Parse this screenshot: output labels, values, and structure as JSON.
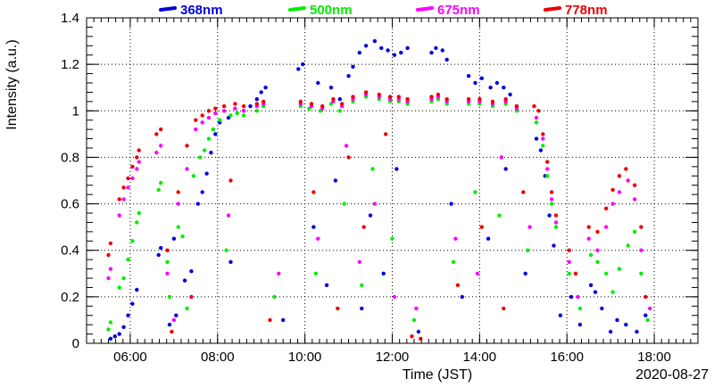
{
  "chart_data": {
    "type": "scatter",
    "title": "",
    "xlabel": "Time (JST)",
    "ylabel": "Intensity (a.u.)",
    "date_label": "2020-08-27",
    "xlim": [
      5.0,
      19.0
    ],
    "ylim": [
      0,
      1.4
    ],
    "x_ticks": [
      {
        "value": 6,
        "label": "06:00"
      },
      {
        "value": 8,
        "label": "08:00"
      },
      {
        "value": 10,
        "label": "10:00"
      },
      {
        "value": 12,
        "label": "12:00"
      },
      {
        "value": 14,
        "label": "14:00"
      },
      {
        "value": 16,
        "label": "16:00"
      },
      {
        "value": 18,
        "label": "18:00"
      }
    ],
    "y_ticks": [
      {
        "value": 0,
        "label": "0"
      },
      {
        "value": 0.2,
        "label": "0.2"
      },
      {
        "value": 0.4,
        "label": "0.4"
      },
      {
        "value": 0.6,
        "label": "0.6"
      },
      {
        "value": 0.8,
        "label": "0.8"
      },
      {
        "value": 1.0,
        "label": "1"
      },
      {
        "value": 1.2,
        "label": "1.2"
      },
      {
        "value": 1.4,
        "label": "1.4"
      }
    ],
    "grid": true,
    "legend_position": "top",
    "series": [
      {
        "name": "368nm",
        "color": "#0000dd",
        "points": [
          [
            5.55,
            0.02
          ],
          [
            5.65,
            0.03
          ],
          [
            5.75,
            0.04
          ],
          [
            5.85,
            0.07
          ],
          [
            5.95,
            0.12
          ],
          [
            6.05,
            0.17
          ],
          [
            6.15,
            0.23
          ],
          [
            6.65,
            0.38
          ],
          [
            6.7,
            0.41
          ],
          [
            6.9,
            0.08
          ],
          [
            7.05,
            0.12
          ],
          [
            7.25,
            0.27
          ],
          [
            7.4,
            0.31
          ],
          [
            7.55,
            0.6
          ],
          [
            7.65,
            0.65
          ],
          [
            7.75,
            0.73
          ],
          [
            7.85,
            0.82
          ],
          [
            7.95,
            0.9
          ],
          [
            8.05,
            0.95
          ],
          [
            8.25,
            0.97
          ],
          [
            8.45,
            0.99
          ],
          [
            8.6,
            1.0
          ],
          [
            8.75,
            1.02
          ],
          [
            8.9,
            1.05
          ],
          [
            9.0,
            1.08
          ],
          [
            9.1,
            1.1
          ],
          [
            9.85,
            1.18
          ],
          [
            9.95,
            1.2
          ],
          [
            10.3,
            1.12
          ],
          [
            10.6,
            1.1
          ],
          [
            10.8,
            1.05
          ],
          [
            11.0,
            1.15
          ],
          [
            11.1,
            1.19
          ],
          [
            11.25,
            1.25
          ],
          [
            11.4,
            1.28
          ],
          [
            11.6,
            1.3
          ],
          [
            11.75,
            1.27
          ],
          [
            11.9,
            1.26
          ],
          [
            12.05,
            1.24
          ],
          [
            12.2,
            1.25
          ],
          [
            12.35,
            1.27
          ],
          [
            12.9,
            1.25
          ],
          [
            13.0,
            1.27
          ],
          [
            13.15,
            1.26
          ],
          [
            13.25,
            1.22
          ],
          [
            13.75,
            1.15
          ],
          [
            13.9,
            1.12
          ],
          [
            14.05,
            1.14
          ],
          [
            14.25,
            1.1
          ],
          [
            14.4,
            1.12
          ],
          [
            14.55,
            1.1
          ],
          [
            14.7,
            1.07
          ],
          [
            14.85,
            1.02
          ],
          [
            15.3,
            0.88
          ],
          [
            15.4,
            0.83
          ],
          [
            15.5,
            0.72
          ],
          [
            15.6,
            0.55
          ],
          [
            15.7,
            0.42
          ],
          [
            16.1,
            0.2
          ],
          [
            16.3,
            0.08
          ],
          [
            16.55,
            0.25
          ],
          [
            16.65,
            0.22
          ],
          [
            16.8,
            0.15
          ],
          [
            17.0,
            0.05
          ],
          [
            17.15,
            0.1
          ],
          [
            17.35,
            0.08
          ],
          [
            17.6,
            0.05
          ],
          [
            7.0,
            0.45
          ],
          [
            8.3,
            0.35
          ],
          [
            9.5,
            0.1
          ],
          [
            10.2,
            0.5
          ],
          [
            10.5,
            0.25
          ],
          [
            10.7,
            0.7
          ],
          [
            11.3,
            0.15
          ],
          [
            11.5,
            0.55
          ],
          [
            11.8,
            0.3
          ],
          [
            12.1,
            0.75
          ],
          [
            12.6,
            0.05
          ],
          [
            13.35,
            0.6
          ],
          [
            13.6,
            0.2
          ],
          [
            14.2,
            0.45
          ],
          [
            14.6,
            0.75
          ],
          [
            15.05,
            0.3
          ],
          [
            15.85,
            0.12
          ],
          [
            17.8,
            0.12
          ]
        ]
      },
      {
        "name": "500nm",
        "color": "#00ee00",
        "points": [
          [
            5.5,
            0.06
          ],
          [
            5.55,
            0.09
          ],
          [
            5.75,
            0.24
          ],
          [
            5.85,
            0.28
          ],
          [
            5.95,
            0.36
          ],
          [
            6.05,
            0.44
          ],
          [
            6.15,
            0.52
          ],
          [
            6.2,
            0.56
          ],
          [
            6.65,
            0.66
          ],
          [
            6.7,
            0.69
          ],
          [
            6.85,
            0.35
          ],
          [
            7.1,
            0.5
          ],
          [
            7.2,
            0.46
          ],
          [
            7.45,
            0.72
          ],
          [
            7.6,
            0.8
          ],
          [
            7.7,
            0.83
          ],
          [
            7.8,
            0.88
          ],
          [
            7.9,
            0.92
          ],
          [
            8.05,
            0.96
          ],
          [
            8.3,
            0.98
          ],
          [
            8.45,
            0.99
          ],
          [
            8.6,
            0.98
          ],
          [
            8.9,
            1.0
          ],
          [
            9.05,
            1.02
          ],
          [
            9.9,
            1.02
          ],
          [
            10.1,
            1.01
          ],
          [
            10.35,
            1.0
          ],
          [
            10.6,
            1.03
          ],
          [
            10.8,
            1.0
          ],
          [
            11.1,
            1.04
          ],
          [
            11.4,
            1.06
          ],
          [
            11.7,
            1.05
          ],
          [
            11.95,
            1.04
          ],
          [
            12.15,
            1.04
          ],
          [
            12.35,
            1.03
          ],
          [
            12.9,
            1.04
          ],
          [
            13.05,
            1.05
          ],
          [
            13.25,
            1.03
          ],
          [
            13.75,
            1.03
          ],
          [
            14.0,
            1.03
          ],
          [
            14.3,
            1.02
          ],
          [
            14.6,
            1.03
          ],
          [
            14.85,
            1.0
          ],
          [
            15.3,
            0.95
          ],
          [
            15.45,
            0.85
          ],
          [
            15.55,
            0.72
          ],
          [
            15.65,
            0.6
          ],
          [
            15.75,
            0.5
          ],
          [
            16.05,
            0.3
          ],
          [
            16.55,
            0.38
          ],
          [
            16.7,
            0.35
          ],
          [
            16.9,
            0.3
          ],
          [
            17.05,
            0.22
          ],
          [
            17.2,
            0.32
          ],
          [
            17.4,
            0.42
          ],
          [
            17.55,
            0.48
          ],
          [
            17.7,
            0.3
          ],
          [
            6.9,
            0.2
          ],
          [
            7.3,
            0.15
          ],
          [
            8.2,
            0.4
          ],
          [
            9.3,
            0.2
          ],
          [
            10.25,
            0.3
          ],
          [
            10.9,
            0.6
          ],
          [
            11.3,
            0.25
          ],
          [
            11.55,
            0.75
          ],
          [
            12.0,
            0.45
          ],
          [
            12.5,
            0.1
          ],
          [
            13.4,
            0.35
          ],
          [
            13.9,
            0.65
          ],
          [
            14.45,
            0.55
          ],
          [
            15.1,
            0.4
          ],
          [
            16.3,
            0.15
          ],
          [
            17.85,
            0.1
          ]
        ]
      },
      {
        "name": "675nm",
        "color": "#ff00ff",
        "points": [
          [
            5.5,
            0.28
          ],
          [
            5.55,
            0.32
          ],
          [
            5.75,
            0.55
          ],
          [
            5.85,
            0.62
          ],
          [
            5.95,
            0.67
          ],
          [
            6.05,
            0.71
          ],
          [
            6.15,
            0.75
          ],
          [
            6.2,
            0.78
          ],
          [
            6.6,
            0.82
          ],
          [
            6.7,
            0.85
          ],
          [
            6.85,
            0.3
          ],
          [
            7.1,
            0.6
          ],
          [
            7.3,
            0.75
          ],
          [
            7.5,
            0.92
          ],
          [
            7.65,
            0.95
          ],
          [
            7.8,
            0.97
          ],
          [
            7.95,
            0.99
          ],
          [
            8.15,
            1.0
          ],
          [
            8.4,
            1.01
          ],
          [
            8.6,
            1.0
          ],
          [
            8.9,
            1.02
          ],
          [
            9.05,
            1.03
          ],
          [
            9.9,
            1.03
          ],
          [
            10.15,
            1.02
          ],
          [
            10.4,
            1.01
          ],
          [
            10.65,
            1.04
          ],
          [
            10.85,
            1.02
          ],
          [
            11.1,
            1.05
          ],
          [
            11.4,
            1.07
          ],
          [
            11.7,
            1.06
          ],
          [
            11.95,
            1.05
          ],
          [
            12.15,
            1.05
          ],
          [
            12.35,
            1.04
          ],
          [
            12.9,
            1.05
          ],
          [
            13.05,
            1.06
          ],
          [
            13.25,
            1.04
          ],
          [
            13.75,
            1.04
          ],
          [
            14.0,
            1.04
          ],
          [
            14.3,
            1.03
          ],
          [
            14.6,
            1.04
          ],
          [
            14.85,
            1.01
          ],
          [
            15.3,
            0.97
          ],
          [
            15.45,
            0.88
          ],
          [
            15.55,
            0.75
          ],
          [
            15.65,
            0.62
          ],
          [
            15.75,
            0.52
          ],
          [
            16.05,
            0.35
          ],
          [
            16.5,
            0.45
          ],
          [
            16.7,
            0.4
          ],
          [
            16.9,
            0.5
          ],
          [
            17.05,
            0.6
          ],
          [
            17.2,
            0.65
          ],
          [
            17.4,
            0.7
          ],
          [
            17.55,
            0.62
          ],
          [
            17.7,
            0.4
          ],
          [
            7.0,
            0.1
          ],
          [
            8.25,
            0.55
          ],
          [
            9.4,
            0.3
          ],
          [
            10.3,
            0.45
          ],
          [
            10.95,
            0.85
          ],
          [
            11.25,
            0.35
          ],
          [
            11.6,
            0.6
          ],
          [
            12.05,
            0.2
          ],
          [
            12.55,
            0.15
          ],
          [
            13.45,
            0.45
          ],
          [
            13.95,
            0.3
          ],
          [
            14.5,
            0.8
          ],
          [
            15.15,
            0.5
          ],
          [
            16.25,
            0.2
          ],
          [
            17.9,
            0.15
          ]
        ]
      },
      {
        "name": "778nm",
        "color": "#ee0000",
        "points": [
          [
            5.5,
            0.38
          ],
          [
            5.55,
            0.43
          ],
          [
            5.75,
            0.62
          ],
          [
            5.85,
            0.67
          ],
          [
            5.95,
            0.71
          ],
          [
            6.05,
            0.76
          ],
          [
            6.15,
            0.8
          ],
          [
            6.2,
            0.83
          ],
          [
            6.6,
            0.9
          ],
          [
            6.7,
            0.92
          ],
          [
            6.85,
            0.4
          ],
          [
            7.1,
            0.65
          ],
          [
            7.3,
            0.85
          ],
          [
            7.5,
            0.96
          ],
          [
            7.65,
            0.98
          ],
          [
            7.8,
            1.0
          ],
          [
            7.95,
            1.01
          ],
          [
            8.15,
            1.02
          ],
          [
            8.4,
            1.03
          ],
          [
            8.6,
            1.02
          ],
          [
            8.9,
            1.03
          ],
          [
            9.05,
            1.04
          ],
          [
            9.9,
            1.04
          ],
          [
            10.15,
            1.03
          ],
          [
            10.4,
            1.02
          ],
          [
            10.65,
            1.05
          ],
          [
            10.85,
            1.03
          ],
          [
            11.1,
            1.06
          ],
          [
            11.4,
            1.08
          ],
          [
            11.7,
            1.07
          ],
          [
            11.95,
            1.06
          ],
          [
            12.15,
            1.06
          ],
          [
            12.35,
            1.05
          ],
          [
            12.9,
            1.06
          ],
          [
            13.05,
            1.07
          ],
          [
            13.25,
            1.05
          ],
          [
            13.75,
            1.05
          ],
          [
            14.0,
            1.05
          ],
          [
            14.3,
            1.04
          ],
          [
            14.6,
            1.05
          ],
          [
            14.85,
            1.02
          ],
          [
            15.25,
            1.02
          ],
          [
            15.35,
            1.0
          ],
          [
            15.45,
            0.9
          ],
          [
            15.55,
            0.78
          ],
          [
            15.65,
            0.65
          ],
          [
            15.75,
            0.55
          ],
          [
            16.05,
            0.4
          ],
          [
            16.5,
            0.5
          ],
          [
            16.7,
            0.48
          ],
          [
            16.9,
            0.58
          ],
          [
            17.05,
            0.66
          ],
          [
            17.2,
            0.72
          ],
          [
            17.35,
            0.75
          ],
          [
            17.55,
            0.68
          ],
          [
            17.7,
            0.5
          ],
          [
            6.95,
            0.05
          ],
          [
            7.4,
            0.2
          ],
          [
            8.3,
            0.7
          ],
          [
            9.2,
            0.1
          ],
          [
            10.2,
            0.65
          ],
          [
            10.75,
            0.15
          ],
          [
            11.0,
            0.8
          ],
          [
            11.35,
            0.5
          ],
          [
            11.85,
            0.9
          ],
          [
            12.45,
            0.03
          ],
          [
            12.65,
            0.02
          ],
          [
            13.5,
            0.25
          ],
          [
            14.05,
            0.5
          ],
          [
            14.55,
            0.15
          ],
          [
            15.0,
            0.65
          ],
          [
            16.2,
            0.3
          ],
          [
            17.8,
            0.2
          ]
        ]
      }
    ]
  }
}
